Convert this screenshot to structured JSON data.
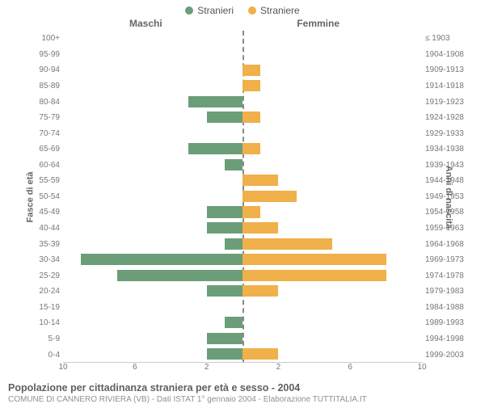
{
  "chart": {
    "type": "population-pyramid",
    "legend": [
      {
        "label": "Stranieri",
        "color": "#6b9e78"
      },
      {
        "label": "Straniere",
        "color": "#f0b04a"
      }
    ],
    "subhead_left": "Maschi",
    "subhead_right": "Femmine",
    "y_left_title": "Fasce di età",
    "y_right_title": "Anni di nascita",
    "age_labels": [
      "100+",
      "95-99",
      "90-94",
      "85-89",
      "80-84",
      "75-79",
      "70-74",
      "65-69",
      "60-64",
      "55-59",
      "50-54",
      "45-49",
      "40-44",
      "35-39",
      "30-34",
      "25-29",
      "20-24",
      "15-19",
      "10-14",
      "5-9",
      "0-4"
    ],
    "birth_labels": [
      "≤ 1903",
      "1904-1908",
      "1909-1913",
      "1914-1918",
      "1919-1923",
      "1924-1928",
      "1929-1933",
      "1934-1938",
      "1939-1943",
      "1944-1948",
      "1949-1953",
      "1954-1958",
      "1959-1963",
      "1964-1968",
      "1969-1973",
      "1974-1978",
      "1979-1983",
      "1984-1988",
      "1989-1993",
      "1994-1998",
      "1999-2003"
    ],
    "male": [
      0,
      0,
      0,
      0,
      3,
      2,
      0,
      3,
      1,
      0,
      0,
      2,
      2,
      1,
      9,
      7,
      2,
      0,
      1,
      2,
      2
    ],
    "female": [
      0,
      0,
      1,
      1,
      0,
      1,
      0,
      1,
      0,
      2,
      3,
      1,
      2,
      5,
      8,
      8,
      2,
      0,
      0,
      0,
      2
    ],
    "x_max": 10,
    "x_ticks": [
      10,
      6,
      2,
      2,
      6,
      10
    ],
    "colors": {
      "male_bar": "#6b9e78",
      "female_bar": "#f0b04a",
      "midline": "#888888",
      "grid": "#cccccc",
      "tick_text": "#777777",
      "background": "#ffffff"
    },
    "fontsizes": {
      "legend": 12,
      "subhead": 12,
      "ticks": 10,
      "axis_title": 11,
      "footer_title": 12.5,
      "footer_sub": 10
    }
  },
  "footer": {
    "title": "Popolazione per cittadinanza straniera per età e sesso - 2004",
    "subtitle": "COMUNE DI CANNERO RIVIERA (VB) - Dati ISTAT 1° gennaio 2004 - Elaborazione TUTTITALIA.IT"
  }
}
